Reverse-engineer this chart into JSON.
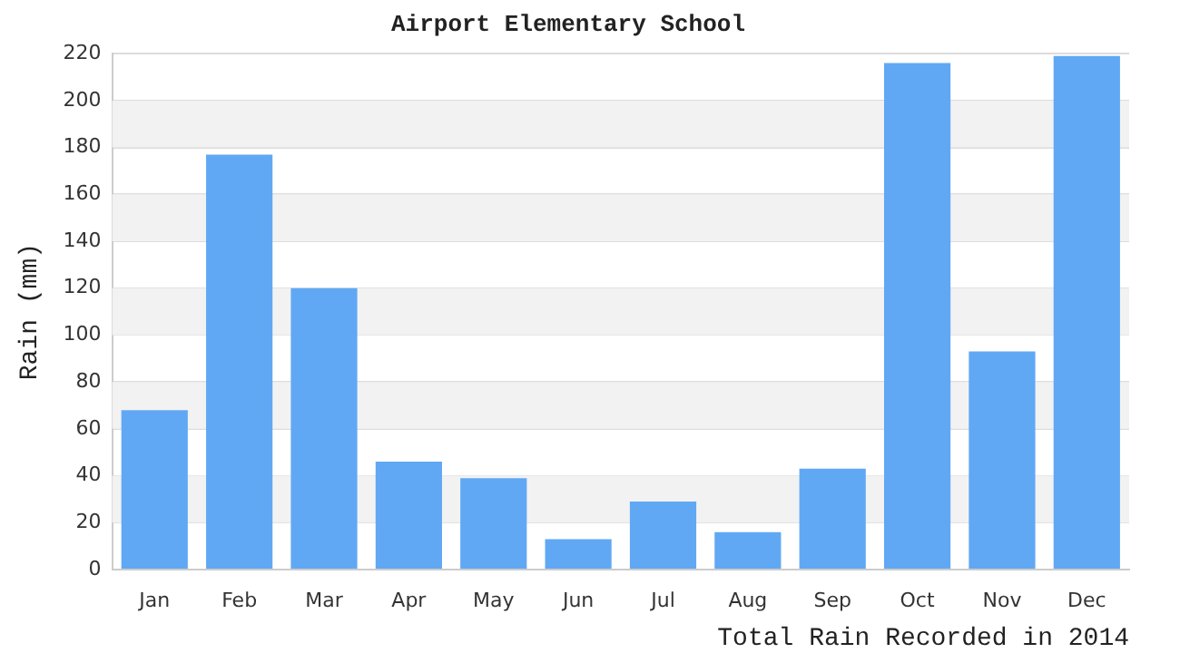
{
  "chart_data": {
    "type": "bar",
    "title": "Airport Elementary School",
    "xlabel": "Total Rain Recorded in 2014",
    "ylabel": "Rain (mm)",
    "categories": [
      "Jan",
      "Feb",
      "Mar",
      "Apr",
      "May",
      "Jun",
      "Jul",
      "Aug",
      "Sep",
      "Oct",
      "Nov",
      "Dec"
    ],
    "values": [
      68,
      177,
      120,
      46,
      39,
      13,
      29,
      16,
      43,
      216,
      93,
      219
    ],
    "color": "#60a8f4",
    "ylim": [
      0,
      220
    ],
    "yticks": [
      0,
      20,
      40,
      60,
      80,
      100,
      120,
      140,
      160,
      180,
      200,
      220
    ],
    "grid": true
  }
}
